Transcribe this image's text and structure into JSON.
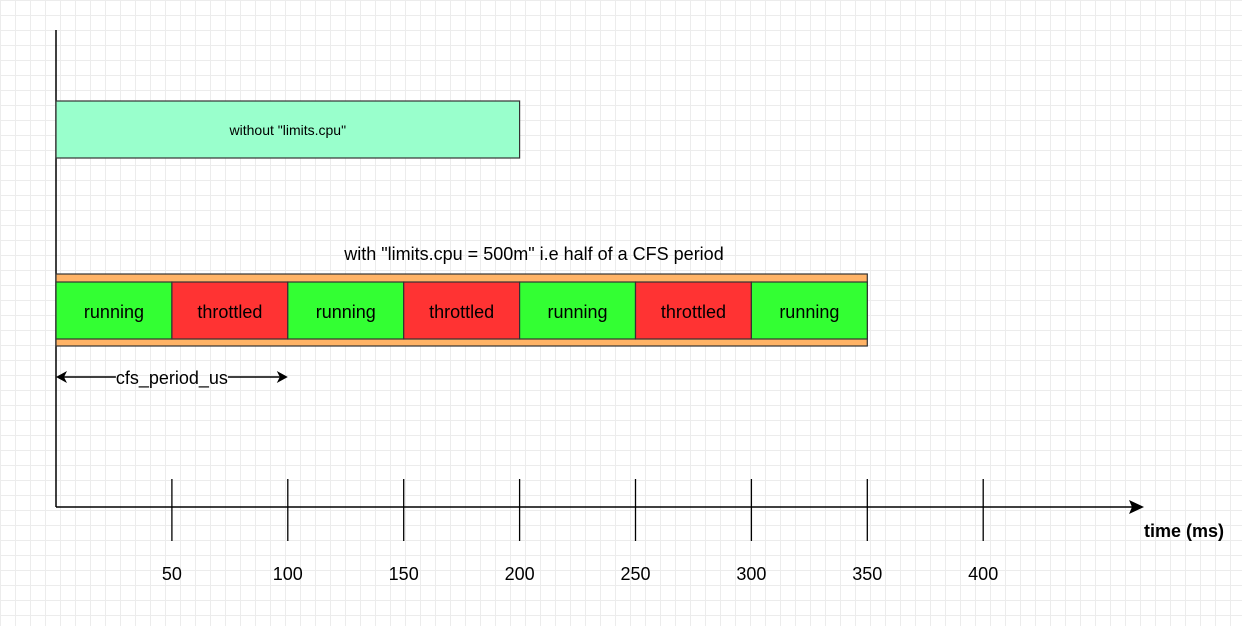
{
  "no_limit_bar": {
    "label": "without \"limits.cpu\"",
    "end_ms": 200,
    "color": "#99ffcc"
  },
  "limited_title": "with \"limits.cpu = 500m\" i.e half of a CFS period",
  "limited_frame_color": "#ffb366",
  "segments": [
    {
      "label": "running",
      "start_ms": 0,
      "end_ms": 50,
      "color": "#33ff33"
    },
    {
      "label": "throttled",
      "start_ms": 50,
      "end_ms": 100,
      "color": "#ff3333"
    },
    {
      "label": "running",
      "start_ms": 100,
      "end_ms": 150,
      "color": "#33ff33"
    },
    {
      "label": "throttled",
      "start_ms": 150,
      "end_ms": 200,
      "color": "#ff3333"
    },
    {
      "label": "running",
      "start_ms": 200,
      "end_ms": 250,
      "color": "#33ff33"
    },
    {
      "label": "throttled",
      "start_ms": 250,
      "end_ms": 300,
      "color": "#ff3333"
    },
    {
      "label": "running",
      "start_ms": 300,
      "end_ms": 350,
      "color": "#33ff33"
    }
  ],
  "period_marker": {
    "label": "cfs_period_us",
    "start_ms": 0,
    "end_ms": 100
  },
  "axis": {
    "label": "time (ms)",
    "ticks": [
      50,
      100,
      150,
      200,
      250,
      300,
      350,
      400
    ]
  }
}
